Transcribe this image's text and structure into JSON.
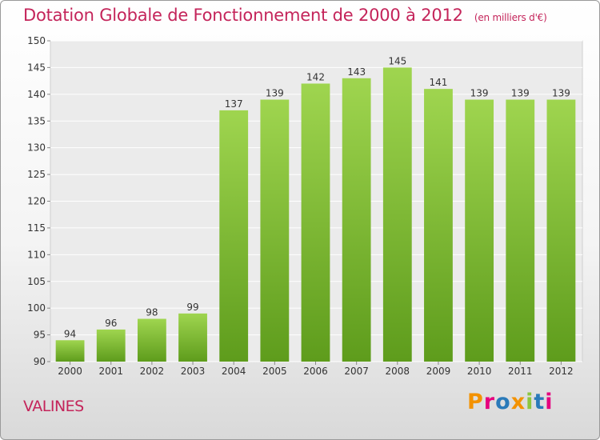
{
  "chart_data": {
    "type": "bar",
    "title": "Dotation Globale de Fonctionnement de 2000 à 2012",
    "subtitle": "(en milliers d'€)",
    "categories": [
      "2000",
      "2001",
      "2002",
      "2003",
      "2004",
      "2005",
      "2006",
      "2007",
      "2008",
      "2009",
      "2010",
      "2011",
      "2012"
    ],
    "values": [
      94,
      96,
      98,
      99,
      137,
      139,
      142,
      143,
      145,
      141,
      139,
      139,
      139
    ],
    "ylim": [
      90,
      150
    ],
    "yticks": [
      90,
      95,
      100,
      105,
      110,
      115,
      120,
      125,
      130,
      135,
      140,
      145,
      150
    ],
    "grid": true,
    "bar_color": "#8cc63f"
  },
  "footer": {
    "city": "VALINES",
    "brand": "Proxiti",
    "brand_colors": [
      "#f39200",
      "#e6007e",
      "#2a7ab9",
      "#f39200",
      "#8cc63f",
      "#2a7ab9",
      "#e6007e"
    ]
  }
}
